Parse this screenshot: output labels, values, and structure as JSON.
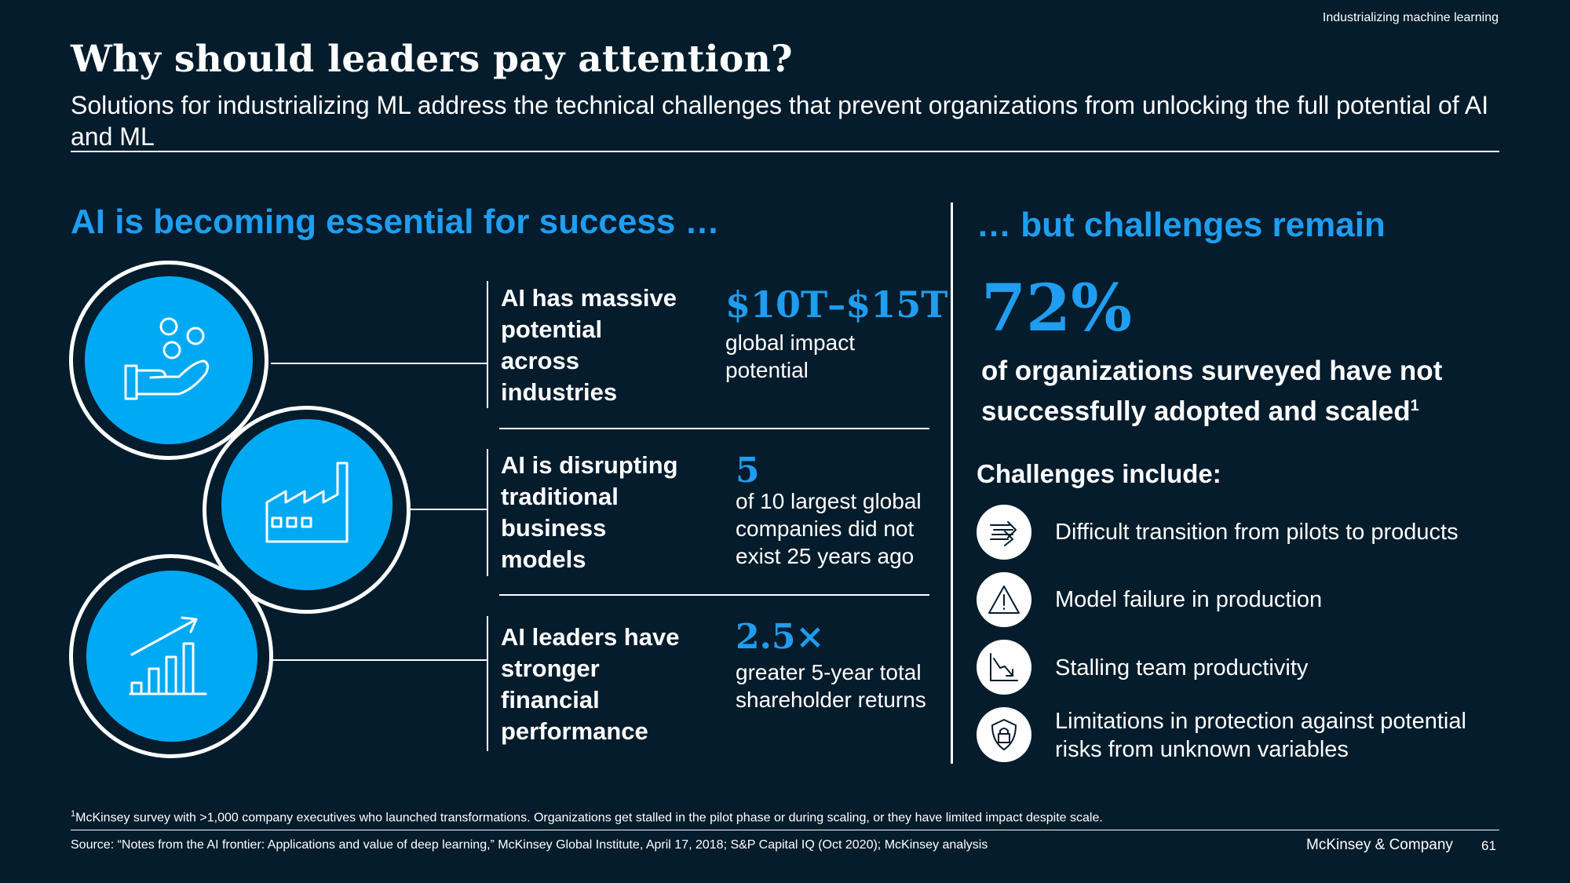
{
  "header": {
    "top_label": "Industrializing machine learning",
    "title": "Why should leaders pay attention?",
    "subtitle": "Solutions for industrializing ML address the technical challenges that prevent organizations from unlocking the full potential of AI and ML"
  },
  "left": {
    "heading": "AI is becoming essential for success …",
    "rows": [
      {
        "icon": "hand-coins-icon",
        "label_lines": [
          "AI has massive",
          "potential",
          "across",
          "industries"
        ],
        "stat": "$10T–$15T",
        "desc_lines": [
          "global impact",
          "potential"
        ]
      },
      {
        "icon": "factory-icon",
        "label_lines": [
          "AI is disrupting",
          "traditional",
          "business",
          "models"
        ],
        "stat": "5",
        "desc_lines": [
          "of 10 largest global",
          "companies did not",
          "exist 25 years ago"
        ]
      },
      {
        "icon": "growth-chart-icon",
        "label_lines": [
          "AI leaders have",
          "stronger",
          "financial",
          "performance"
        ],
        "stat": "2.5×",
        "desc_lines": [
          "greater 5-year total",
          "shareholder returns"
        ]
      }
    ]
  },
  "right": {
    "heading": "… but challenges remain",
    "percent": "72%",
    "percent_desc_1": "of organizations surveyed have not",
    "percent_desc_2": "successfully adopted and scaled",
    "percent_sup": "1",
    "challenges_heading": "Challenges include:",
    "challenges": [
      {
        "icon": "transition-arrows-icon",
        "lines": [
          "Difficult transition from pilots to products"
        ]
      },
      {
        "icon": "warning-triangle-icon",
        "lines": [
          "Model failure in production"
        ]
      },
      {
        "icon": "declining-chart-icon",
        "lines": [
          "Stalling team productivity"
        ]
      },
      {
        "icon": "shield-lock-icon",
        "lines": [
          "Limitations in protection against potential",
          "risks from unknown variables"
        ]
      }
    ]
  },
  "footer": {
    "footnote_sup": "1",
    "footnote": "McKinsey survey with >1,000 company executives who launched transformations. Organizations get stalled in the pilot phase or during scaling, or they have  limited impact despite scale.",
    "source": "Source: “Notes from the AI frontier: Applications and value of deep learning,” McKinsey Global Institute, April 17, 2018; S&P Capital IQ (Oct 2020); McKinsey analysis",
    "brand": "McKinsey & Company",
    "page": "61"
  },
  "colors": {
    "background": "#051c2c",
    "accent": "#1f9df0",
    "disc": "#00a9f4",
    "text": "#ffffff"
  }
}
